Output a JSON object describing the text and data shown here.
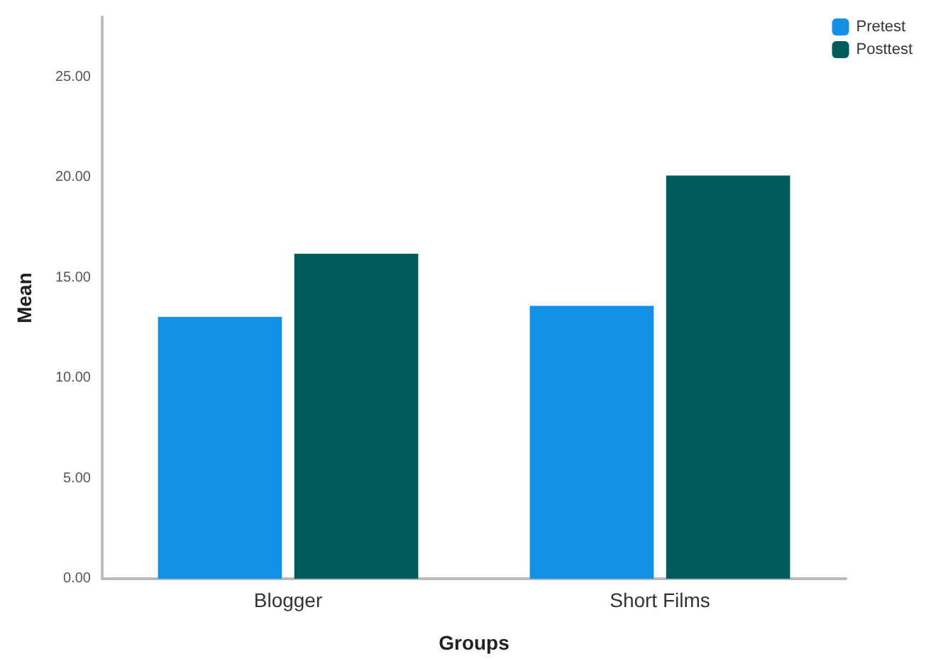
{
  "chart_data": {
    "type": "bar",
    "xlabel": "Groups",
    "ylabel": "Mean",
    "categories": [
      "Blogger",
      "Short Films"
    ],
    "series": [
      {
        "name": "Pretest",
        "color": "#1490e4",
        "values": [
          13.05,
          13.6
        ]
      },
      {
        "name": "Posttest",
        "color": "#005b5a",
        "values": [
          16.2,
          20.1
        ]
      }
    ],
    "ylim": [
      0,
      28
    ],
    "yticks": [
      {
        "value": 0,
        "label": "0.00"
      },
      {
        "value": 5,
        "label": "5.00"
      },
      {
        "value": 10,
        "label": "10.00"
      },
      {
        "value": 15,
        "label": "15.00"
      },
      {
        "value": 20,
        "label": "20.00"
      },
      {
        "value": 25,
        "label": "25.00"
      }
    ],
    "grid": false,
    "legend": "top right"
  }
}
